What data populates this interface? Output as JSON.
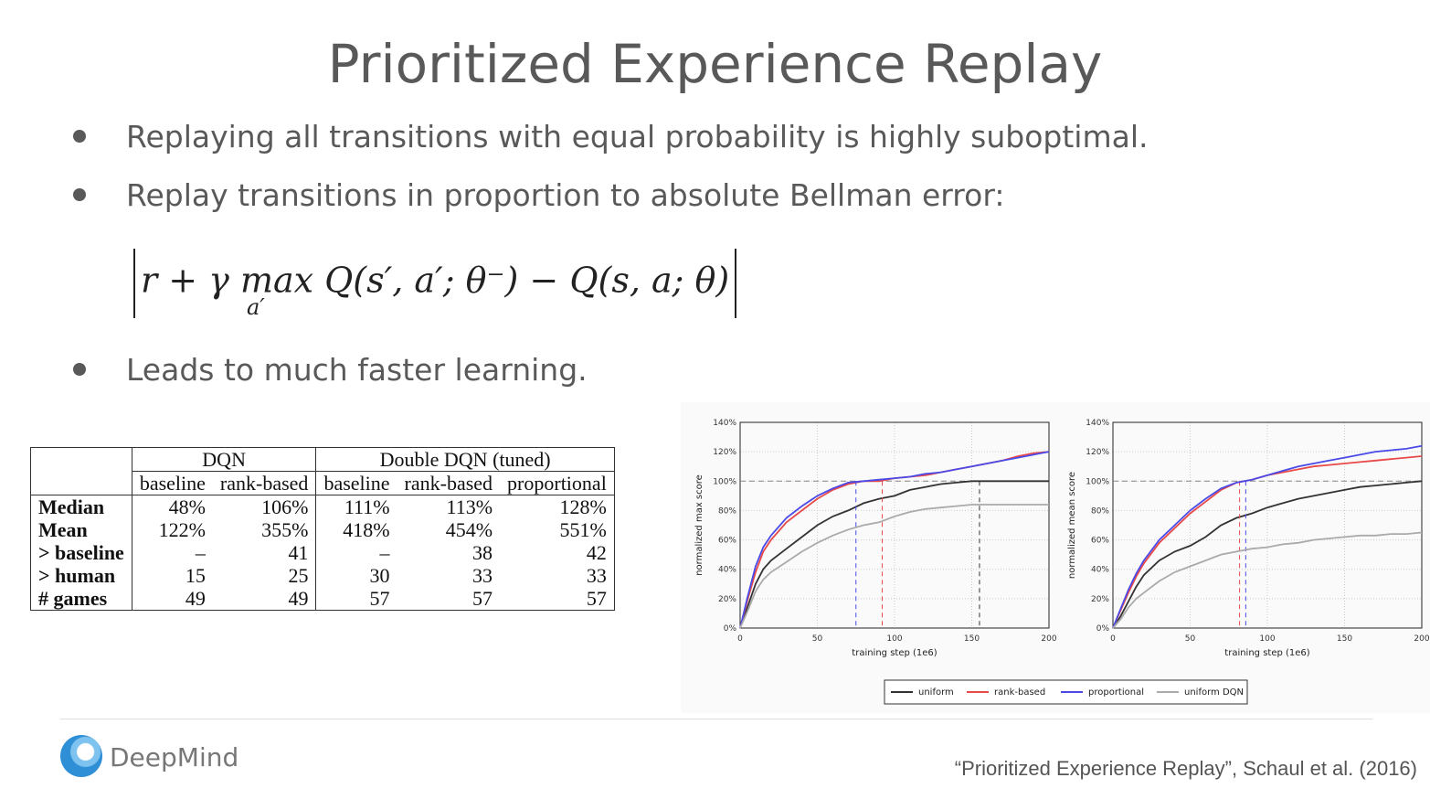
{
  "slide": {
    "title": "Prioritized Experience Replay",
    "bullets": [
      "Replaying all transitions with equal probability is highly suboptimal.",
      "Replay transitions in proportion to absolute Bellman error:",
      "Leads to much faster learning."
    ],
    "formula_main": "r + γ max Q(s′, a′; θ⁻) − Q(s, a; θ)",
    "formula_sub": "a′",
    "logo_text": "DeepMind",
    "citation": "“Prioritized Experience Replay”, Schaul et al. (2016)"
  },
  "table": {
    "group_headers": [
      "DQN",
      "Double DQN (tuned)"
    ],
    "col_headers": [
      "baseline",
      "rank-based",
      "baseline",
      "rank-based",
      "proportional"
    ],
    "rows": [
      {
        "label": "Median",
        "values": [
          "48%",
          "106%",
          "111%",
          "113%",
          "128%"
        ]
      },
      {
        "label": "Mean",
        "values": [
          "122%",
          "355%",
          "418%",
          "454%",
          "551%"
        ]
      },
      {
        "label": "> baseline",
        "values": [
          "–",
          "41",
          "–",
          "38",
          "42"
        ]
      },
      {
        "label": "> human",
        "values": [
          "15",
          "25",
          "30",
          "33",
          "33"
        ]
      },
      {
        "label": "# games",
        "values": [
          "49",
          "49",
          "57",
          "57",
          "57"
        ]
      }
    ]
  },
  "chart_data": [
    {
      "type": "line",
      "xlabel": "training step (1e6)",
      "ylabel": "normalized max score",
      "xlim": [
        0,
        200
      ],
      "ylim": [
        0,
        140
      ],
      "xticks": [
        "0",
        "50",
        "100",
        "150",
        "200"
      ],
      "yticks": [
        "0%",
        "20%",
        "40%",
        "60%",
        "80%",
        "100%",
        "120%",
        "140%"
      ],
      "grid": true,
      "reference_line_y": 100,
      "series": [
        {
          "name": "uniform",
          "color": "#333333",
          "x": [
            0,
            5,
            10,
            15,
            20,
            30,
            40,
            50,
            60,
            70,
            80,
            90,
            100,
            110,
            120,
            130,
            140,
            150,
            160,
            170,
            180,
            190,
            200
          ],
          "y": [
            0,
            15,
            30,
            40,
            46,
            54,
            62,
            70,
            76,
            80,
            85,
            88,
            90,
            94,
            96,
            98,
            99,
            100,
            100,
            100,
            100,
            100,
            100
          ],
          "marker_x": 155
        },
        {
          "name": "rank-based",
          "color": "#e84a4a",
          "x": [
            0,
            5,
            10,
            15,
            20,
            30,
            40,
            50,
            60,
            70,
            80,
            90,
            100,
            110,
            120,
            130,
            140,
            150,
            160,
            170,
            180,
            190,
            200
          ],
          "y": [
            0,
            20,
            38,
            52,
            60,
            72,
            80,
            88,
            94,
            98,
            100,
            100,
            102,
            103,
            104,
            106,
            108,
            110,
            112,
            114,
            117,
            119,
            120
          ],
          "marker_x": 92
        },
        {
          "name": "proportional",
          "color": "#4a4ae8",
          "x": [
            0,
            5,
            10,
            15,
            20,
            30,
            40,
            50,
            60,
            70,
            80,
            90,
            100,
            110,
            120,
            130,
            140,
            150,
            160,
            170,
            180,
            190,
            200
          ],
          "y": [
            0,
            22,
            42,
            55,
            63,
            75,
            83,
            90,
            95,
            99,
            100,
            101,
            102,
            103,
            105,
            106,
            108,
            110,
            112,
            114,
            116,
            118,
            120
          ],
          "marker_x": 75
        },
        {
          "name": "uniform DQN",
          "color": "#aaaaaa",
          "x": [
            0,
            5,
            10,
            15,
            20,
            30,
            40,
            50,
            60,
            70,
            80,
            90,
            100,
            110,
            120,
            130,
            140,
            150,
            160,
            170,
            180,
            190,
            200
          ],
          "y": [
            0,
            12,
            25,
            33,
            38,
            45,
            52,
            58,
            63,
            67,
            70,
            72,
            76,
            79,
            81,
            82,
            83,
            84,
            84,
            84,
            84,
            84,
            84
          ]
        }
      ]
    },
    {
      "type": "line",
      "xlabel": "training step (1e6)",
      "ylabel": "normalized mean score",
      "xlim": [
        0,
        200
      ],
      "ylim": [
        0,
        140
      ],
      "xticks": [
        "0",
        "50",
        "100",
        "150",
        "200"
      ],
      "yticks": [
        "0%",
        "20%",
        "40%",
        "60%",
        "80%",
        "100%",
        "120%",
        "140%"
      ],
      "grid": true,
      "reference_line_y": 100,
      "series": [
        {
          "name": "uniform",
          "color": "#333333",
          "x": [
            0,
            5,
            10,
            15,
            20,
            30,
            40,
            50,
            60,
            70,
            80,
            90,
            100,
            110,
            120,
            130,
            140,
            150,
            160,
            170,
            180,
            190,
            200
          ],
          "y": [
            0,
            8,
            18,
            28,
            36,
            46,
            52,
            56,
            62,
            70,
            75,
            78,
            82,
            85,
            88,
            90,
            92,
            94,
            96,
            97,
            98,
            99,
            100
          ]
        },
        {
          "name": "rank-based",
          "color": "#e84a4a",
          "x": [
            0,
            5,
            10,
            15,
            20,
            30,
            40,
            50,
            60,
            70,
            80,
            90,
            100,
            110,
            120,
            130,
            140,
            150,
            160,
            170,
            180,
            190,
            200
          ],
          "y": [
            0,
            12,
            24,
            35,
            44,
            58,
            68,
            78,
            86,
            94,
            99,
            101,
            104,
            106,
            108,
            110,
            111,
            112,
            113,
            114,
            115,
            116,
            117
          ],
          "marker_x": 82
        },
        {
          "name": "proportional",
          "color": "#4a4ae8",
          "x": [
            0,
            5,
            10,
            15,
            20,
            30,
            40,
            50,
            60,
            70,
            80,
            90,
            100,
            110,
            120,
            130,
            140,
            150,
            160,
            170,
            180,
            190,
            200
          ],
          "y": [
            0,
            13,
            26,
            37,
            46,
            60,
            70,
            80,
            88,
            95,
            99,
            101,
            104,
            107,
            110,
            112,
            114,
            116,
            118,
            120,
            121,
            122,
            124
          ],
          "marker_x": 86
        },
        {
          "name": "uniform DQN",
          "color": "#aaaaaa",
          "x": [
            0,
            5,
            10,
            15,
            20,
            30,
            40,
            50,
            60,
            70,
            80,
            90,
            100,
            110,
            120,
            130,
            140,
            150,
            160,
            170,
            180,
            190,
            200
          ],
          "y": [
            0,
            6,
            14,
            20,
            24,
            32,
            38,
            42,
            46,
            50,
            52,
            54,
            55,
            57,
            58,
            60,
            61,
            62,
            63,
            63,
            64,
            64,
            65
          ]
        }
      ]
    }
  ],
  "legend": [
    "uniform",
    "rank-based",
    "proportional",
    "uniform DQN"
  ]
}
